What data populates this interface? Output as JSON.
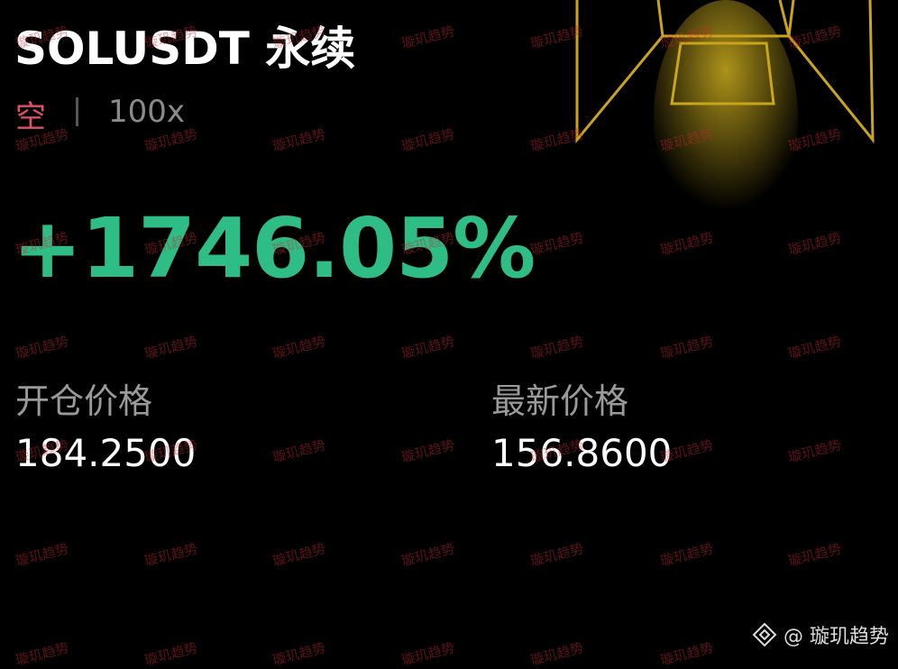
{
  "header": {
    "title": "SOLUSDT 永续",
    "side": "空",
    "leverage": "100x"
  },
  "pnl": "+1746.05%",
  "prices": [
    {
      "label": "开仓价格",
      "value": "184.2500"
    },
    {
      "label": "最新价格",
      "value": "156.8600"
    }
  ],
  "watermark": "璇玑趋势",
  "footer": "@ 璇玑趋势"
}
